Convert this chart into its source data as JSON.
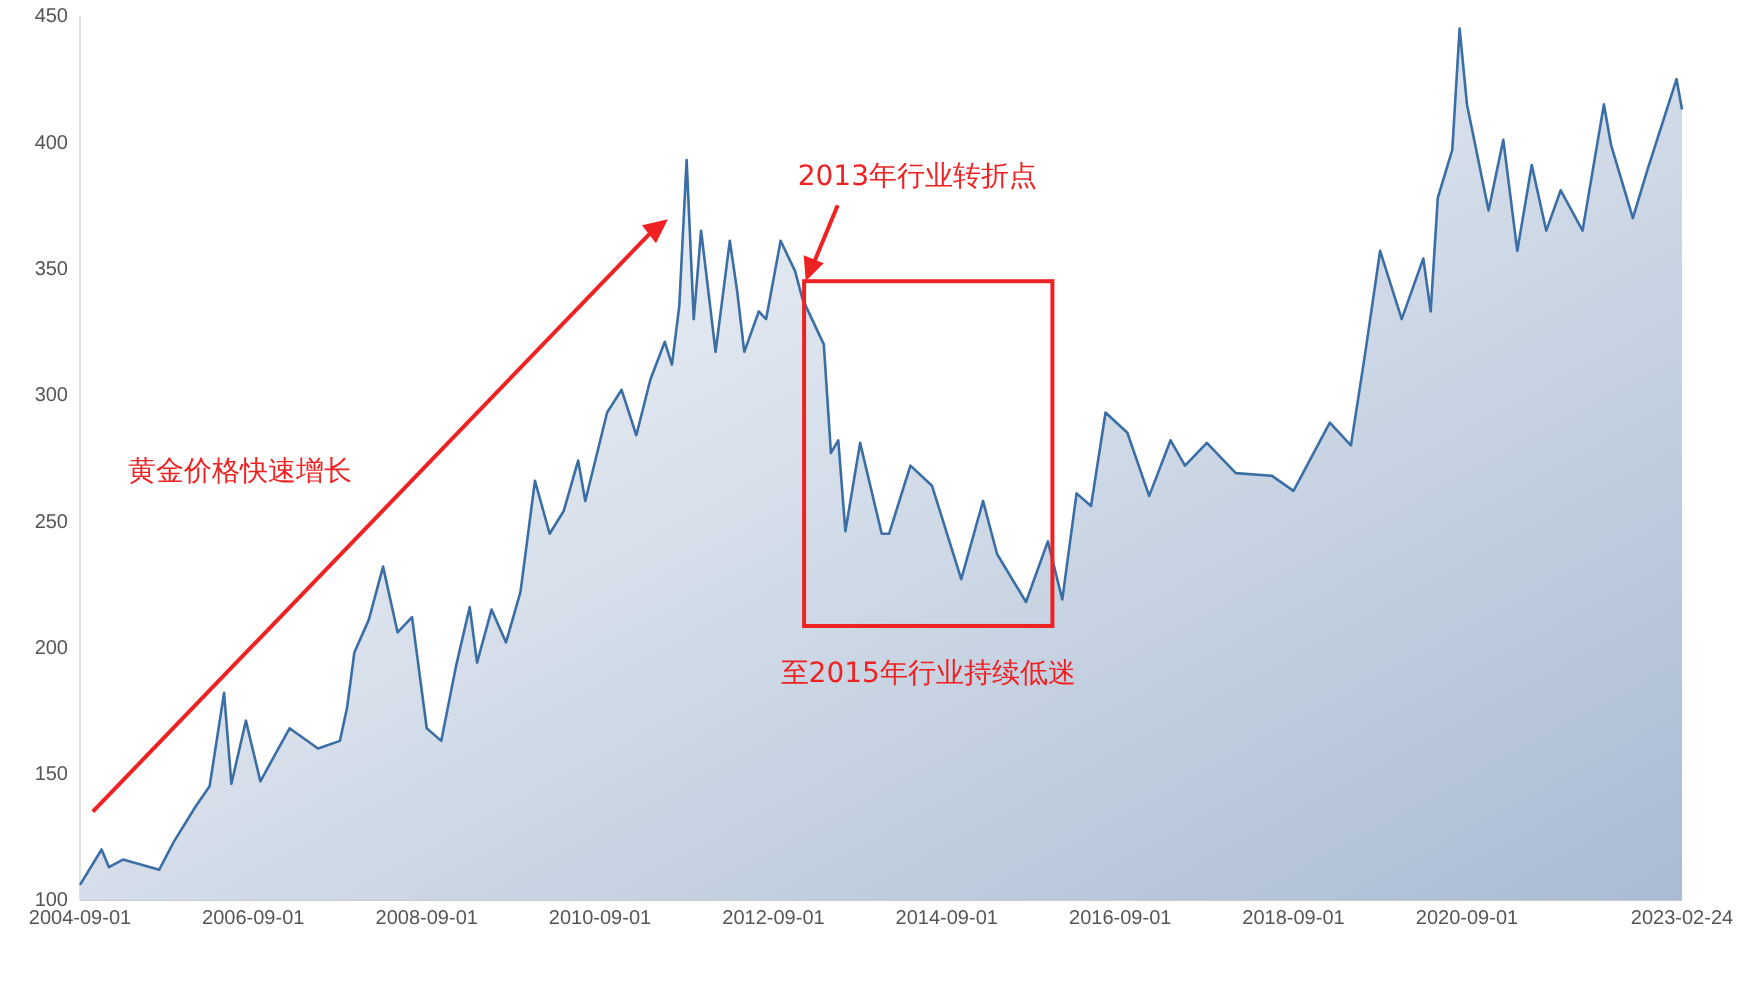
{
  "chart_data": {
    "type": "area",
    "x": [
      "2004-09-01",
      "2004-12",
      "2005-01",
      "2005-03",
      "2005-08",
      "2005-10",
      "2006-01",
      "2006-03",
      "2006-05",
      "2006-06",
      "2006-08",
      "2006-10",
      "2007-02",
      "2007-06",
      "2007-09",
      "2007-10",
      "2007-11",
      "2008-01",
      "2008-03",
      "2008-05",
      "2008-07",
      "2008-09",
      "2008-11",
      "2009-01",
      "2009-03",
      "2009-04",
      "2009-06",
      "2009-08",
      "2009-10",
      "2009-12",
      "2010-02",
      "2010-04",
      "2010-06",
      "2010-07",
      "2010-10",
      "2010-12",
      "2011-02",
      "2011-04",
      "2011-06",
      "2011-07",
      "2011-08",
      "2011-09",
      "2011-10",
      "2011-11",
      "2012-01",
      "2012-03",
      "2012-04",
      "2012-05",
      "2012-07",
      "2012-08",
      "2012-10",
      "2012-12",
      "2013-01",
      "2013-04",
      "2013-05",
      "2013-06",
      "2013-07",
      "2013-09",
      "2013-12",
      "2014-01",
      "2014-04",
      "2014-07",
      "2014-11",
      "2015-02",
      "2015-04",
      "2015-08",
      "2015-11",
      "2016-01",
      "2016-03",
      "2016-05",
      "2016-07",
      "2016-10",
      "2017-01",
      "2017-04",
      "2017-06",
      "2017-09",
      "2018-01",
      "2018-06",
      "2018-09",
      "2019-02",
      "2019-05",
      "2019-07",
      "2019-09",
      "2019-12",
      "2020-03",
      "2020-04",
      "2020-05",
      "2020-07",
      "2020-08",
      "2020-09",
      "2020-12",
      "2021-02",
      "2021-04",
      "2021-06",
      "2021-08",
      "2021-10",
      "2022-01",
      "2022-04",
      "2022-05",
      "2022-08",
      "2022-10",
      "2023-02-01",
      "2023-02-24"
    ],
    "series": [
      {
        "color": "#3b6ea5",
        "values": [
          106,
          120,
          113,
          116,
          112,
          123,
          137,
          145,
          182,
          146,
          171,
          147,
          168,
          160,
          163,
          176,
          198,
          211,
          232,
          206,
          212,
          168,
          163,
          192,
          216,
          194,
          215,
          202,
          222,
          266,
          245,
          254,
          274,
          258,
          293,
          302,
          284,
          306,
          321,
          312,
          335,
          393,
          330,
          365,
          317,
          361,
          341,
          317,
          333,
          330,
          361,
          349,
          338,
          320,
          277,
          282,
          246,
          281,
          245,
          245,
          272,
          264,
          227,
          258,
          237,
          218,
          242,
          219,
          261,
          256,
          293,
          285,
          260,
          282,
          272,
          281,
          269,
          268,
          262,
          289,
          280,
          317,
          357,
          330,
          354,
          333,
          378,
          397,
          445,
          415,
          373,
          401,
          357,
          391,
          365,
          381,
          365,
          415,
          399,
          370,
          389,
          425,
          413
        ]
      }
    ],
    "xlim": [
      "2004-09-01",
      "2023-02-24"
    ],
    "xticks": [
      "2004-09-01",
      "2006-09-01",
      "2008-09-01",
      "2010-09-01",
      "2012-09-01",
      "2014-09-01",
      "2016-09-01",
      "2018-09-01",
      "2020-09-01",
      "2023-02-24"
    ],
    "ylim": [
      100,
      450
    ],
    "yticks": [
      100,
      150,
      200,
      250,
      300,
      350,
      400,
      450
    ],
    "grid": false,
    "legend": false,
    "annotations": [
      "黄金价格快速增长",
      "2013年行业转折点",
      "至2015年行业持续低迷"
    ]
  }
}
